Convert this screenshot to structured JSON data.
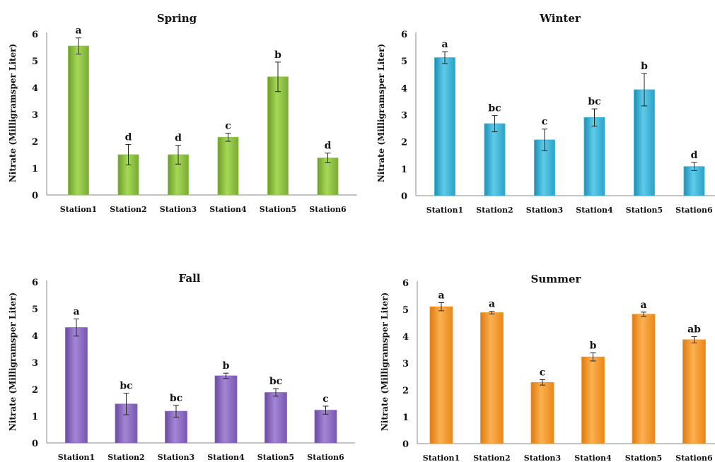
{
  "chart_data": [
    {
      "type": "bar",
      "title": "Spring",
      "ylabel": "Nitrate (Milligramsper Liter)",
      "categories": [
        "Station1",
        "Station2",
        "Station3",
        "Station4",
        "Station5",
        "Station6"
      ],
      "values": [
        5.55,
        1.5,
        1.5,
        2.15,
        4.4,
        1.38
      ],
      "errors": [
        0.3,
        0.38,
        0.35,
        0.15,
        0.55,
        0.18
      ],
      "letters": [
        "a",
        "d",
        "d",
        "c",
        "b",
        "d"
      ],
      "ylim": [
        0,
        6
      ],
      "yticks": [
        "0",
        "1",
        "2",
        "3",
        "4",
        "5",
        "6"
      ],
      "color": "#8dc63f"
    },
    {
      "type": "bar",
      "title": "Winter",
      "ylabel": "Nitrate (Milligramsper Liter)",
      "categories": [
        "Station1",
        "Station2",
        "Station3",
        "Station4",
        "Station5",
        "Station6"
      ],
      "values": [
        5.12,
        2.67,
        2.07,
        2.9,
        3.93,
        1.08
      ],
      "errors": [
        0.22,
        0.3,
        0.4,
        0.32,
        0.6,
        0.15
      ],
      "letters": [
        "a",
        "bc",
        "c",
        "bc",
        "b",
        "d"
      ],
      "ylim": [
        0,
        6
      ],
      "yticks": [
        "0",
        "1",
        "2",
        "3",
        "4",
        "5",
        "6"
      ],
      "color": "#33b5d8"
    },
    {
      "type": "bar",
      "title": "Fall",
      "ylabel": "Nitrate (Milligramsper Liter)",
      "categories": [
        "Station1",
        "Station2",
        "Station3",
        "Station4",
        "Station5",
        "Station6"
      ],
      "values": [
        4.3,
        1.45,
        1.18,
        2.5,
        1.88,
        1.22
      ],
      "errors": [
        0.32,
        0.4,
        0.22,
        0.1,
        0.14,
        0.15
      ],
      "letters": [
        "a",
        "bc",
        "bc",
        "b",
        "bc",
        "c"
      ],
      "ylim": [
        0,
        6
      ],
      "yticks": [
        "0",
        "1",
        "2",
        "3",
        "4",
        "5",
        "6"
      ],
      "color": "#8a68c0"
    },
    {
      "type": "bar",
      "title": "Summer",
      "ylabel": "Nitrate (Milligramsper Liter)",
      "categories": [
        "Station1",
        "Station2",
        "Station3",
        "Station4",
        "Station5",
        "Station6"
      ],
      "values": [
        5.1,
        4.88,
        2.28,
        3.23,
        4.82,
        3.87
      ],
      "errors": [
        0.15,
        0.05,
        0.1,
        0.15,
        0.08,
        0.12
      ],
      "letters": [
        "a",
        "a",
        "c",
        "b",
        "a",
        "ab"
      ],
      "ylim": [
        0,
        6
      ],
      "yticks": [
        "0",
        "1",
        "2",
        "3",
        "4",
        "5",
        "6"
      ],
      "color": "#f5961e"
    }
  ]
}
